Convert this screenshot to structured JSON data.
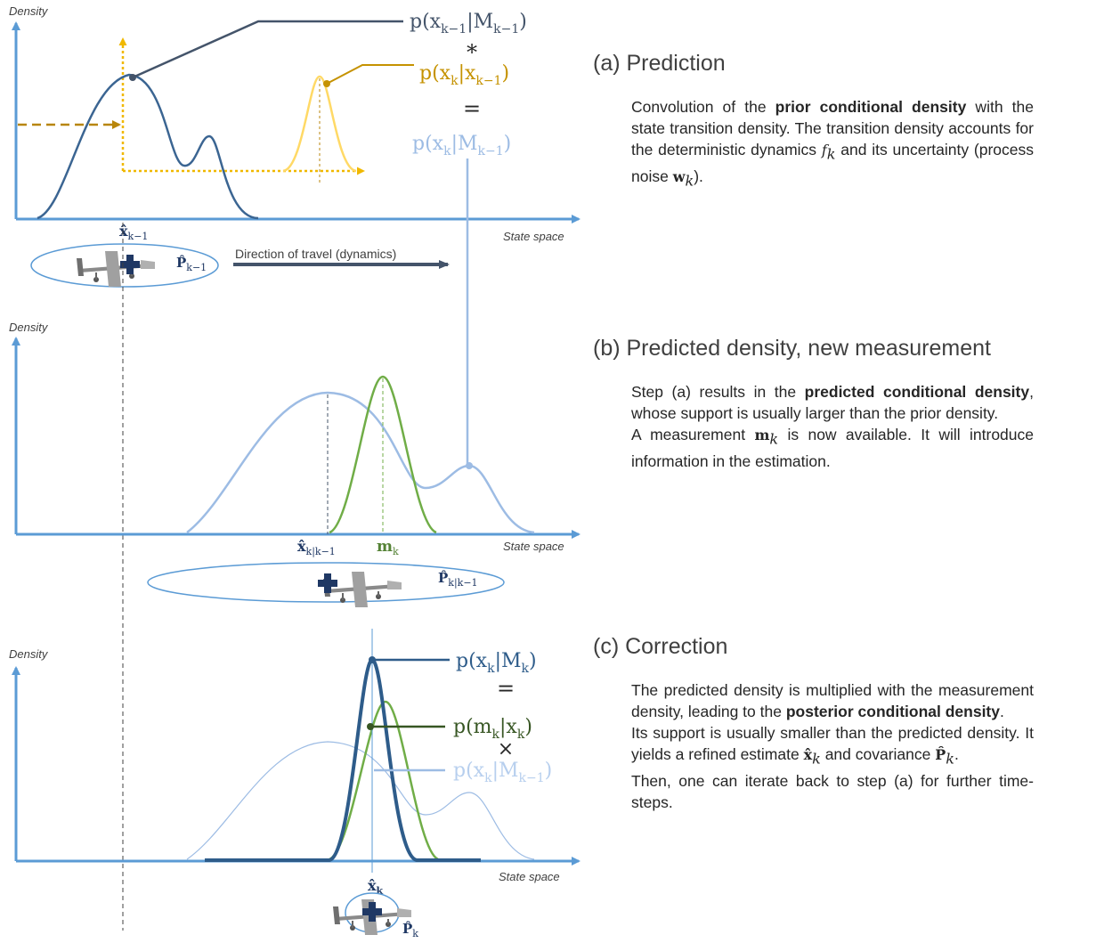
{
  "colors": {
    "axis": "#5b9bd5",
    "prior": "#3b6592",
    "transition": "#e8b53a",
    "transition_dark": "#b8860b",
    "predicted": "#9dbce4",
    "measurement": "#70ad47",
    "measurement_dark": "#548235",
    "posterior": "#2e5c8a",
    "travel_arrow": "#44546a"
  },
  "panel_a": {
    "ylabel": "Density",
    "xlabel": "State space",
    "est_label": "x̂",
    "est_sub": "k−1",
    "cov_label": "P̂",
    "cov_sub": "k−1",
    "travel_label": "Direction of travel (dynamics)",
    "eq_prior": "p(x",
    "eq_prior_sub": "k−1",
    "eq_prior_mid": "|M",
    "eq_prior_sub2": "k−1",
    "eq_op1": "∗",
    "eq_trans": "p(x",
    "eq_trans_sub": "k",
    "eq_trans_mid": "|x",
    "eq_trans_sub2": "k−1",
    "eq_op2": "=",
    "eq_pred": "p(x",
    "eq_pred_sub": "k",
    "eq_pred_mid": "|M",
    "eq_pred_sub2": "k−1",
    "close": ")"
  },
  "panel_b": {
    "ylabel": "Density",
    "xlabel": "State space",
    "est_label": "x̂",
    "est_sub": "k|k−1",
    "meas_label": "m",
    "meas_sub": "k",
    "cov_label": "P̂",
    "cov_sub": "k|k−1"
  },
  "panel_c": {
    "ylabel": "Density",
    "xlabel": "State space",
    "est_label": "x̂",
    "est_sub": "k",
    "cov_label": "P̂",
    "cov_sub": "k",
    "eq_post": "p(x",
    "eq_post_sub": "k",
    "eq_post_mid": "|M",
    "eq_post_sub2": "k",
    "eq_op1": "=",
    "eq_meas": "p(m",
    "eq_meas_sub": "k",
    "eq_meas_mid": "|x",
    "eq_meas_sub2": "k",
    "eq_op2": "×",
    "eq_pred": "p(x",
    "eq_pred_sub": "k",
    "eq_pred_mid": "|M",
    "eq_pred_sub2": "k−1",
    "close": ")"
  },
  "text": {
    "a_heading": "(a) Prediction",
    "a_p1_1": "Convolution of the ",
    "a_p1_b": "prior conditional density",
    "a_p1_2": " with the state transition density. The transition density accounts for the deterministic dynamics ",
    "a_p1_f": "f",
    "a_p1_fsub": "k",
    "a_p1_3": " and its uncertainty (process noise ",
    "a_p1_w": "w",
    "a_p1_wsub": "k",
    "a_p1_4": ").",
    "b_heading": "(b) Predicted density, new measurement",
    "b_p1_1": "Step (a) results in the ",
    "b_p1_b": "predicted conditional density",
    "b_p1_2": ", whose support is usually larger than the prior density.",
    "b_p2_1": "A measurement ",
    "b_p2_m": "m",
    "b_p2_msub": "k",
    "b_p2_2": " is now available. It will introduce information in the estimation.",
    "c_heading": "(c) Correction",
    "c_p1_1": "The predicted density is multiplied with the measurement density, leading to the ",
    "c_p1_b": "posterior conditional density",
    "c_p1_2": ".",
    "c_p2_1": "Its support is usually smaller than the predicted density. It yields a refined estimate ",
    "c_p2_x": "x̂",
    "c_p2_xsub": "k",
    "c_p2_2": " and covariance ",
    "c_p2_p": "P̂",
    "c_p2_psub": "k",
    "c_p2_3": ".",
    "c_p3": "Then, one can iterate back to step (a) for further time-steps."
  }
}
